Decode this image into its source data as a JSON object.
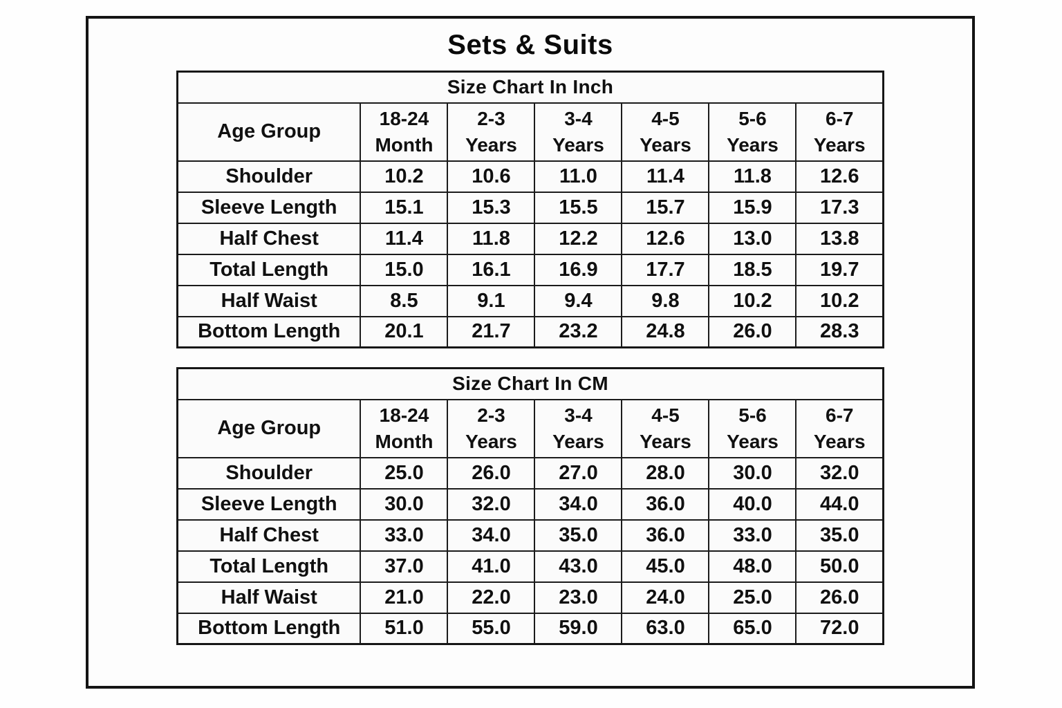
{
  "page_title": "Sets & Suits",
  "tables": [
    {
      "title": "Size Chart In Inch",
      "corner_label": "Age Group",
      "columns": [
        {
          "line1": "18-24",
          "line2": "Month"
        },
        {
          "line1": "2-3",
          "line2": "Years"
        },
        {
          "line1": "3-4",
          "line2": "Years"
        },
        {
          "line1": "4-5",
          "line2": "Years"
        },
        {
          "line1": "5-6",
          "line2": "Years"
        },
        {
          "line1": "6-7",
          "line2": "Years"
        }
      ],
      "rows": [
        {
          "label": "Shoulder",
          "values": [
            "10.2",
            "10.6",
            "11.0",
            "11.4",
            "11.8",
            "12.6"
          ]
        },
        {
          "label": "Sleeve Length",
          "values": [
            "15.1",
            "15.3",
            "15.5",
            "15.7",
            "15.9",
            "17.3"
          ]
        },
        {
          "label": "Half Chest",
          "values": [
            "11.4",
            "11.8",
            "12.2",
            "12.6",
            "13.0",
            "13.8"
          ]
        },
        {
          "label": "Total Length",
          "values": [
            "15.0",
            "16.1",
            "16.9",
            "17.7",
            "18.5",
            "19.7"
          ]
        },
        {
          "label": "Half Waist",
          "values": [
            "8.5",
            "9.1",
            "9.4",
            "9.8",
            "10.2",
            "10.2"
          ]
        },
        {
          "label": "Bottom Length",
          "values": [
            "20.1",
            "21.7",
            "23.2",
            "24.8",
            "26.0",
            "28.3"
          ]
        }
      ]
    },
    {
      "title": "Size Chart In CM",
      "corner_label": "Age Group",
      "columns": [
        {
          "line1": "18-24",
          "line2": "Month"
        },
        {
          "line1": "2-3",
          "line2": "Years"
        },
        {
          "line1": "3-4",
          "line2": "Years"
        },
        {
          "line1": "4-5",
          "line2": "Years"
        },
        {
          "line1": "5-6",
          "line2": "Years"
        },
        {
          "line1": "6-7",
          "line2": "Years"
        }
      ],
      "rows": [
        {
          "label": "Shoulder",
          "values": [
            "25.0",
            "26.0",
            "27.0",
            "28.0",
            "30.0",
            "32.0"
          ]
        },
        {
          "label": "Sleeve Length",
          "values": [
            "30.0",
            "32.0",
            "34.0",
            "36.0",
            "40.0",
            "44.0"
          ]
        },
        {
          "label": "Half Chest",
          "values": [
            "33.0",
            "34.0",
            "35.0",
            "36.0",
            "33.0",
            "35.0"
          ]
        },
        {
          "label": "Total Length",
          "values": [
            "37.0",
            "41.0",
            "43.0",
            "45.0",
            "48.0",
            "50.0"
          ]
        },
        {
          "label": "Half Waist",
          "values": [
            "21.0",
            "22.0",
            "23.0",
            "24.0",
            "25.0",
            "26.0"
          ]
        },
        {
          "label": "Bottom Length",
          "values": [
            "51.0",
            "55.0",
            "59.0",
            "63.0",
            "65.0",
            "72.0"
          ]
        }
      ]
    }
  ],
  "chart_data": [
    {
      "type": "table",
      "title": "Size Chart In Inch",
      "categories": [
        "18-24 Month",
        "2-3 Years",
        "3-4 Years",
        "4-5 Years",
        "5-6 Years",
        "6-7 Years"
      ],
      "series": [
        {
          "name": "Shoulder",
          "values": [
            10.2,
            10.6,
            11.0,
            11.4,
            11.8,
            12.6
          ]
        },
        {
          "name": "Sleeve Length",
          "values": [
            15.1,
            15.3,
            15.5,
            15.7,
            15.9,
            17.3
          ]
        },
        {
          "name": "Half Chest",
          "values": [
            11.4,
            11.8,
            12.2,
            12.6,
            13.0,
            13.8
          ]
        },
        {
          "name": "Total Length",
          "values": [
            15.0,
            16.1,
            16.9,
            17.7,
            18.5,
            19.7
          ]
        },
        {
          "name": "Half Waist",
          "values": [
            8.5,
            9.1,
            9.4,
            9.8,
            10.2,
            10.2
          ]
        },
        {
          "name": "Bottom Length",
          "values": [
            20.1,
            21.7,
            23.2,
            24.8,
            26.0,
            28.3
          ]
        }
      ]
    },
    {
      "type": "table",
      "title": "Size Chart In CM",
      "categories": [
        "18-24 Month",
        "2-3 Years",
        "3-4 Years",
        "4-5 Years",
        "5-6 Years",
        "6-7 Years"
      ],
      "series": [
        {
          "name": "Shoulder",
          "values": [
            25.0,
            26.0,
            27.0,
            28.0,
            30.0,
            32.0
          ]
        },
        {
          "name": "Sleeve Length",
          "values": [
            30.0,
            32.0,
            34.0,
            36.0,
            40.0,
            44.0
          ]
        },
        {
          "name": "Half Chest",
          "values": [
            33.0,
            34.0,
            35.0,
            36.0,
            33.0,
            35.0
          ]
        },
        {
          "name": "Total Length",
          "values": [
            37.0,
            41.0,
            43.0,
            45.0,
            48.0,
            50.0
          ]
        },
        {
          "name": "Half Waist",
          "values": [
            21.0,
            22.0,
            23.0,
            24.0,
            25.0,
            26.0
          ]
        },
        {
          "name": "Bottom Length",
          "values": [
            51.0,
            55.0,
            59.0,
            63.0,
            65.0,
            72.0
          ]
        }
      ]
    }
  ]
}
